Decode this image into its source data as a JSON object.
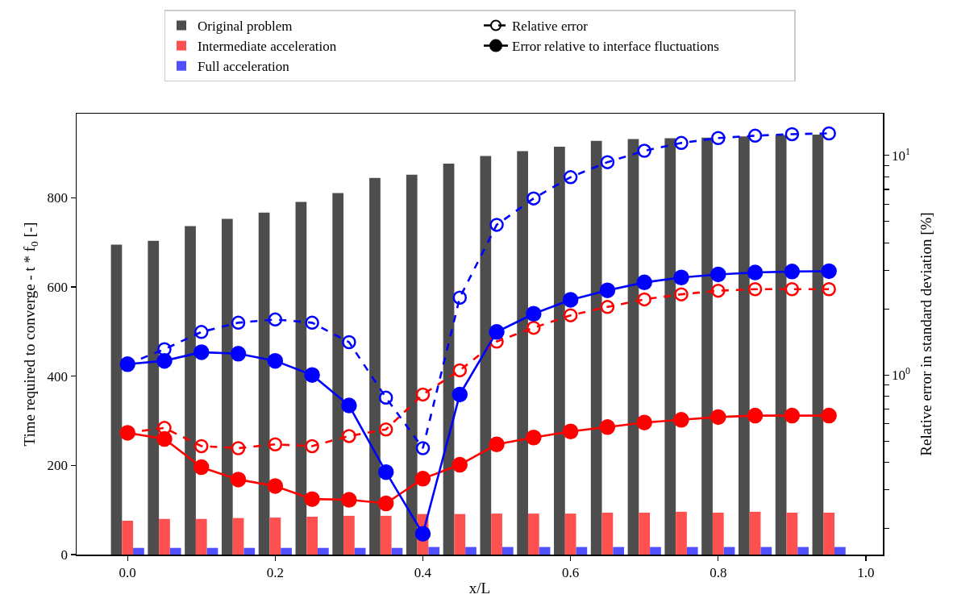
{
  "chart_data": {
    "type": "bar",
    "xlabel": "x/L",
    "ylabel": "Time required to converge - t * f$_{0}$ [-]",
    "y2label": "Relative error in standard deviation [%]",
    "x": [
      0,
      0.05,
      0.1,
      0.15,
      0.2,
      0.25,
      0.3,
      0.35,
      0.4,
      0.45,
      0.5,
      0.55,
      0.6,
      0.65,
      0.7,
      0.75,
      0.8,
      0.85,
      0.9,
      0.95
    ],
    "series": [
      {
        "name": "Original problem",
        "color": "#4d4d4d",
        "values": [
          695,
          704,
          737,
          753,
          767,
          791,
          811,
          845,
          852,
          877,
          894,
          905,
          915,
          928,
          932,
          934,
          935,
          938,
          941,
          942
        ]
      },
      {
        "name": "Intermediate acceleration",
        "color": "#ff5050",
        "values": [
          76,
          80,
          80,
          82,
          83,
          85,
          87,
          87,
          91,
          91,
          92,
          92,
          92,
          94,
          94,
          96,
          94,
          96,
          94,
          94
        ]
      },
      {
        "name": "Full acceleration",
        "color": "#5050ff",
        "values": [
          15,
          15,
          15,
          15,
          15,
          15,
          15,
          15,
          17,
          17,
          17,
          17,
          17,
          17,
          17,
          17,
          17,
          17,
          17,
          17
        ]
      },
      {
        "type": "line",
        "axis": "y2",
        "line_style": "dashed",
        "marker": "circle",
        "color": "#ff0000",
        "values": [
          0.545,
          0.574,
          0.474,
          0.464,
          0.483,
          0.474,
          0.527,
          0.565,
          0.815,
          1.05,
          1.42,
          1.64,
          1.87,
          2.04,
          2.21,
          2.33,
          2.42,
          2.46,
          2.46,
          2.46
        ]
      },
      {
        "type": "line",
        "axis": "y2",
        "line_style": "solid",
        "marker": "circle",
        "color": "#ff0000",
        "values": [
          0.545,
          0.511,
          0.38,
          0.334,
          0.312,
          0.272,
          0.27,
          0.26,
          0.337,
          0.39,
          0.483,
          0.519,
          0.553,
          0.579,
          0.607,
          0.625,
          0.643,
          0.653,
          0.653,
          0.653
        ]
      },
      {
        "type": "line",
        "axis": "y2",
        "line_style": "dashed",
        "marker": "circle",
        "color": "#0000ff",
        "values": [
          1.12,
          1.31,
          1.57,
          1.73,
          1.79,
          1.73,
          1.41,
          0.788,
          0.464,
          2.25,
          4.83,
          6.37,
          7.96,
          9.32,
          10.5,
          11.4,
          12.0,
          12.3,
          12.5,
          12.6
        ]
      },
      {
        "type": "line",
        "axis": "y2",
        "line_style": "solid",
        "marker": "circle",
        "color": "#0000ff",
        "values": [
          1.12,
          1.16,
          1.27,
          1.25,
          1.16,
          1.0,
          0.726,
          0.361,
          0.189,
          0.815,
          1.57,
          1.9,
          2.2,
          2.43,
          2.64,
          2.78,
          2.87,
          2.93,
          2.96,
          2.97
        ]
      }
    ],
    "xlim": [
      -0.069,
      1.023
    ],
    "xticks": [
      {
        "value": 0,
        "label": "0.0"
      },
      {
        "value": 0.2,
        "label": "0.2"
      },
      {
        "value": 0.4,
        "label": "0.4"
      },
      {
        "value": 0.6,
        "label": "0.6"
      },
      {
        "value": 0.8,
        "label": "0.8"
      },
      {
        "value": 1,
        "label": "1.0"
      }
    ],
    "ylim": [
      0,
      989
    ],
    "yticks": [
      0,
      200,
      400,
      600,
      800
    ],
    "y2lim": [
      0.152,
      15.5
    ],
    "y2ticks": [
      {
        "value": 0.2,
        "label": null
      },
      {
        "value": 0.3,
        "label": null
      },
      {
        "value": 0.4,
        "label": null
      },
      {
        "value": 0.5,
        "label": null
      },
      {
        "value": 0.6,
        "label": null
      },
      {
        "value": 0.7,
        "label": null
      },
      {
        "value": 0.8,
        "label": null
      },
      {
        "value": 0.9,
        "label": null
      },
      {
        "value": 1,
        "label": "10$^{0}$"
      },
      {
        "value": 2,
        "label": null
      },
      {
        "value": 3,
        "label": null
      },
      {
        "value": 4,
        "label": null
      },
      {
        "value": 5,
        "label": null
      },
      {
        "value": 6,
        "label": null
      },
      {
        "value": 7,
        "label": null
      },
      {
        "value": 8,
        "label": null
      },
      {
        "value": 9,
        "label": null
      },
      {
        "value": 10,
        "label": "10$^{1}$"
      }
    ],
    "annotations": [
      "Relative error",
      "Error relative to interface fluctuations"
    ],
    "log": "y2",
    "grid": false,
    "legend": "top"
  }
}
